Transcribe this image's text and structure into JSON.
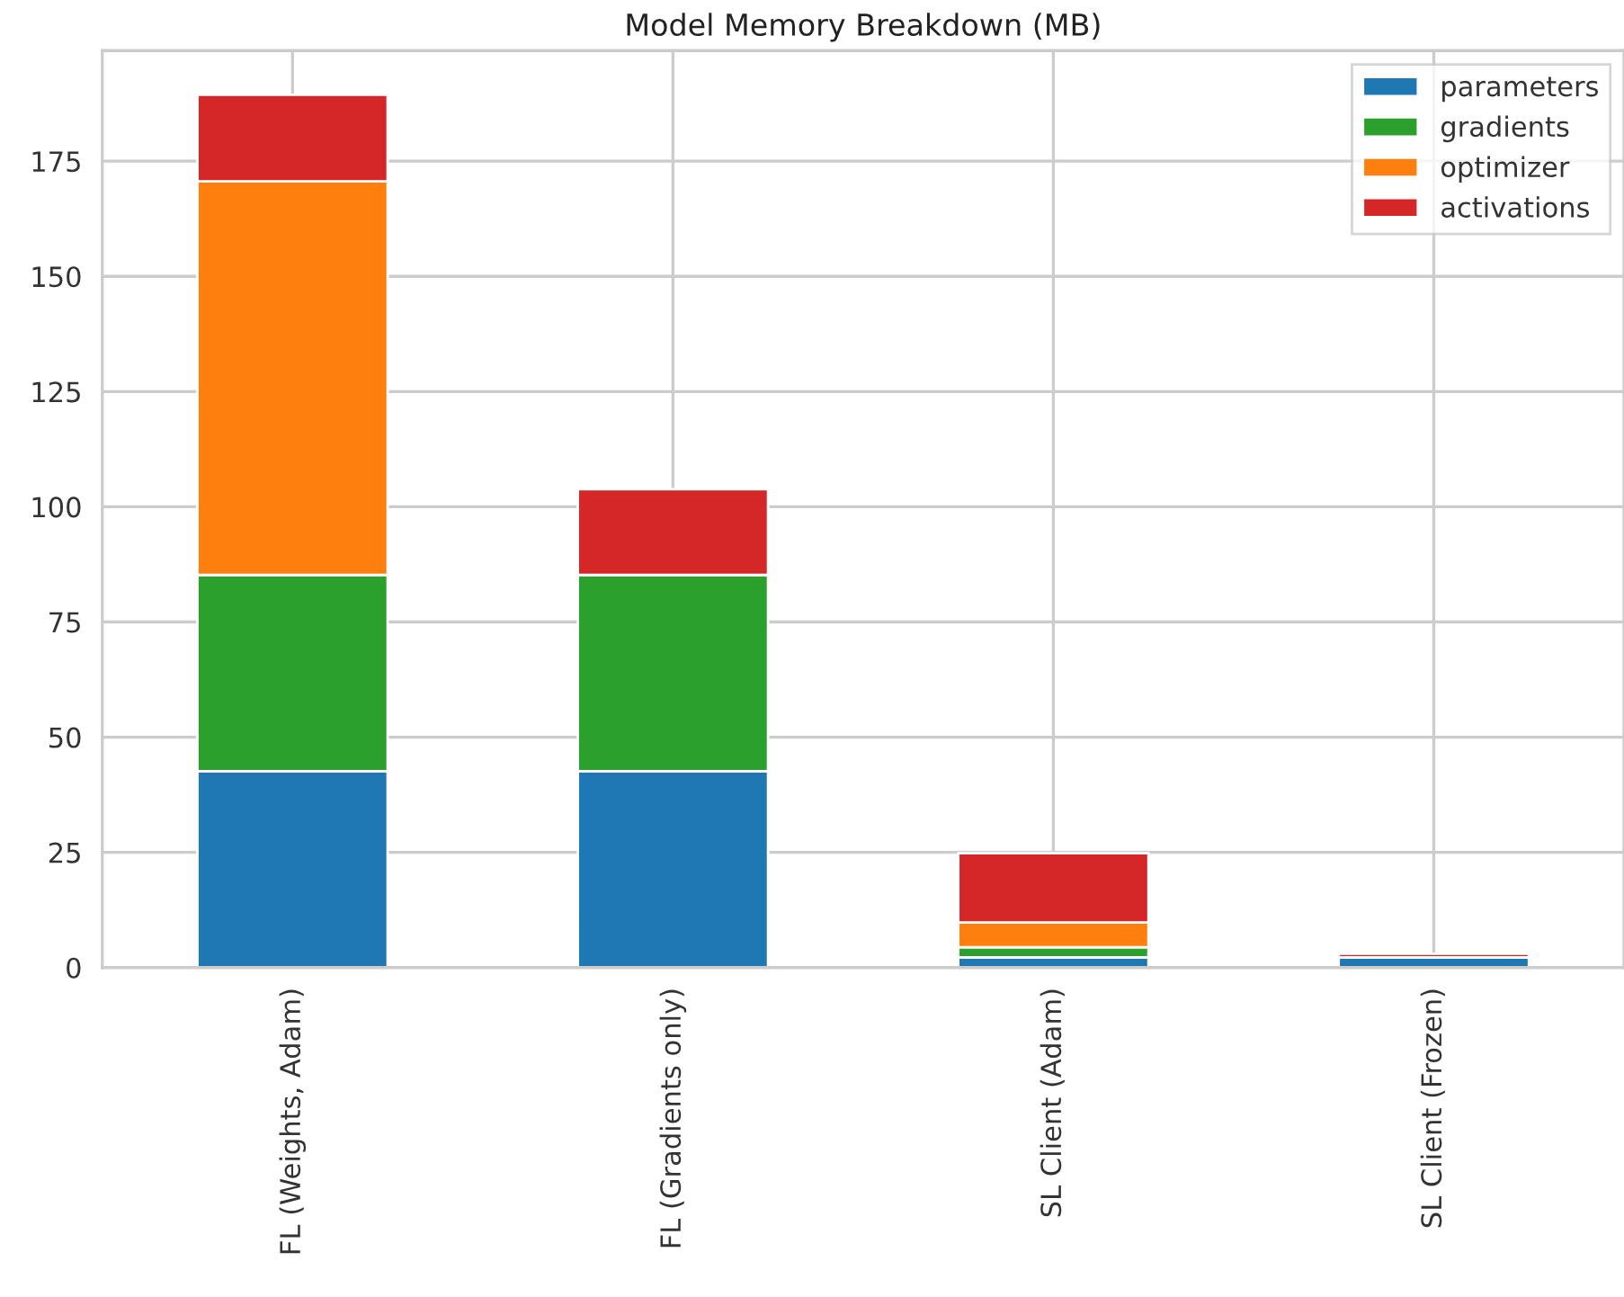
{
  "chart_data": {
    "type": "bar",
    "title": "Model Memory Breakdown (MB)",
    "categories": [
      "FL (Weights, Adam)",
      "FL (Gradients only)",
      "SL Client (Adam)",
      "SL Client (Frozen)"
    ],
    "stacked": true,
    "series": [
      {
        "name": "parameters",
        "color": "#1f77b4",
        "values": [
          42.6,
          42.6,
          2.2,
          2.2
        ]
      },
      {
        "name": "gradients",
        "color": "#2ca02c",
        "values": [
          42.6,
          42.6,
          2.2,
          0
        ]
      },
      {
        "name": "optimizer",
        "color": "#ff7f0e",
        "values": [
          85.4,
          0,
          5.4,
          0
        ]
      },
      {
        "name": "activations",
        "color": "#d62728",
        "values": [
          18.8,
          18.6,
          15.0,
          0.8
        ]
      }
    ],
    "ylim": [
      0,
      199
    ],
    "yticks": [
      0,
      25,
      50,
      75,
      100,
      125,
      150,
      175
    ],
    "grid": true,
    "legend": "top right"
  }
}
